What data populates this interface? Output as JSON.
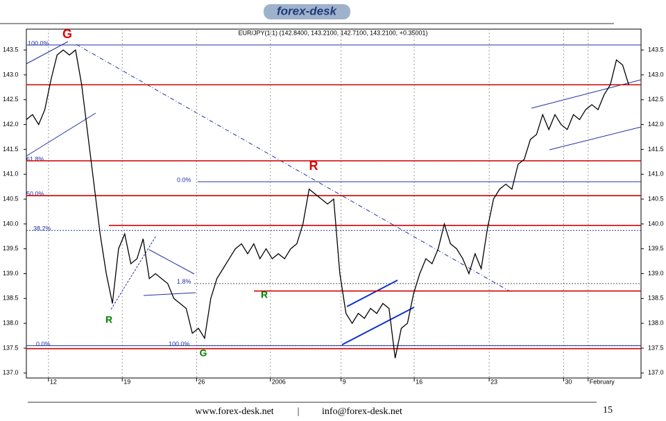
{
  "header": {
    "logo": "forex-desk"
  },
  "chart_data": {
    "type": "line",
    "title": "EUR/JPY(1:1) (142.8400, 143.2100, 142.7100, 143.2100, +0.35001)",
    "x": [
      0,
      1,
      2,
      3,
      4,
      5,
      6,
      7,
      8,
      9,
      10,
      11,
      12,
      13,
      14,
      15,
      16,
      17,
      18,
      19,
      20,
      21,
      22,
      23,
      24,
      25,
      26,
      27,
      28,
      29,
      30,
      31,
      32,
      33,
      34,
      35,
      36,
      37,
      38,
      39,
      40,
      41,
      42,
      43,
      44,
      45,
      46,
      47,
      48,
      49,
      50,
      51,
      52,
      53,
      54,
      55,
      56,
      57,
      58,
      59,
      60,
      61,
      62,
      63,
      64,
      65,
      66,
      67,
      68,
      69,
      70,
      71,
      72,
      73,
      74,
      75,
      76,
      77,
      78,
      79,
      80,
      81,
      82,
      83,
      84,
      85,
      86,
      87,
      88,
      89,
      90,
      91,
      92,
      93,
      94,
      95,
      96,
      97,
      98
    ],
    "series": [
      {
        "name": "EUR/JPY",
        "color": "#000000",
        "values": [
          142.1,
          142.2,
          142.0,
          142.3,
          142.9,
          143.4,
          143.5,
          143.4,
          143.5,
          142.8,
          141.8,
          140.8,
          139.8,
          139.0,
          138.4,
          139.5,
          139.8,
          139.2,
          139.3,
          139.7,
          138.9,
          139.0,
          138.9,
          138.8,
          138.5,
          138.4,
          138.3,
          137.8,
          137.9,
          137.7,
          138.5,
          138.9,
          139.1,
          139.3,
          139.5,
          139.6,
          139.4,
          139.6,
          139.3,
          139.5,
          139.3,
          139.4,
          139.3,
          139.5,
          139.6,
          140.0,
          140.7,
          140.6,
          140.5,
          140.4,
          140.5,
          139.0,
          138.2,
          138.0,
          138.2,
          138.1,
          138.3,
          138.2,
          138.4,
          138.3,
          137.3,
          137.9,
          138.0,
          138.6,
          139.0,
          139.3,
          139.2,
          139.5,
          140.0,
          139.6,
          139.5,
          139.3,
          139.0,
          139.4,
          139.1,
          139.9,
          140.5,
          140.7,
          140.8,
          140.7,
          141.2,
          141.3,
          141.7,
          141.8,
          142.2,
          141.9,
          142.2,
          142.0,
          141.9,
          142.2,
          142.1,
          142.3,
          142.4,
          142.3,
          142.6,
          142.8,
          143.3,
          143.2,
          142.8
        ]
      }
    ],
    "xlim": [
      0,
      100
    ],
    "xticks": [
      {
        "value": 3.6,
        "label": "12"
      },
      {
        "value": 15.6,
        "label": "19"
      },
      {
        "value": 27.7,
        "label": "26"
      },
      {
        "value": 39.7,
        "label": "2006"
      },
      {
        "value": 51.2,
        "label": "9"
      },
      {
        "value": 63.1,
        "label": "16"
      },
      {
        "value": 75.3,
        "label": "23"
      },
      {
        "value": 87.4,
        "label": "30"
      },
      {
        "value": 91.4,
        "label": "February"
      }
    ],
    "ylim": [
      136.9,
      143.92
    ],
    "yticks": [
      {
        "value": 137,
        "label": "137.0"
      },
      137.5,
      {
        "value": 138,
        "label": "138.0"
      },
      138.5,
      {
        "value": 139,
        "label": "139.0"
      },
      139.5,
      {
        "value": 140,
        "label": "140.0"
      },
      140.5,
      {
        "value": 141,
        "label": "141.0"
      },
      141.5,
      {
        "value": 142,
        "label": "142.0"
      },
      142.5,
      {
        "value": 143,
        "label": "143.0"
      },
      143.5
    ],
    "grid": true,
    "levels": {
      "color": "#d00000",
      "values": [
        142.8,
        141.27,
        140.57,
        139.97,
        138.65,
        137.49
      ]
    },
    "fib": [
      {
        "label": "100.0%",
        "value": 143.6
      },
      {
        "label": "61.8%",
        "value": 141.27
      },
      {
        "label": "50.0%",
        "value": 140.57
      },
      {
        "label": "38.2%",
        "value": 139.87
      },
      {
        "label": "0.0%",
        "value": 140.85
      },
      {
        "label": "1.8%",
        "value": 138.8
      },
      {
        "label": "0.0%",
        "value": 137.55
      },
      {
        "label": "100.0%",
        "value": 137.55
      }
    ],
    "annotations": [
      {
        "text": "G",
        "color": "#e00000"
      },
      {
        "text": "R",
        "color": "#008000"
      },
      {
        "text": "R",
        "color": "#e00000"
      },
      {
        "text": "R",
        "color": "#008000"
      },
      {
        "text": "G",
        "color": "#008000"
      }
    ]
  },
  "footer": {
    "site": "www.forex-desk.net",
    "sep": "|",
    "email": "info@forex-desk.net",
    "page": "15"
  }
}
